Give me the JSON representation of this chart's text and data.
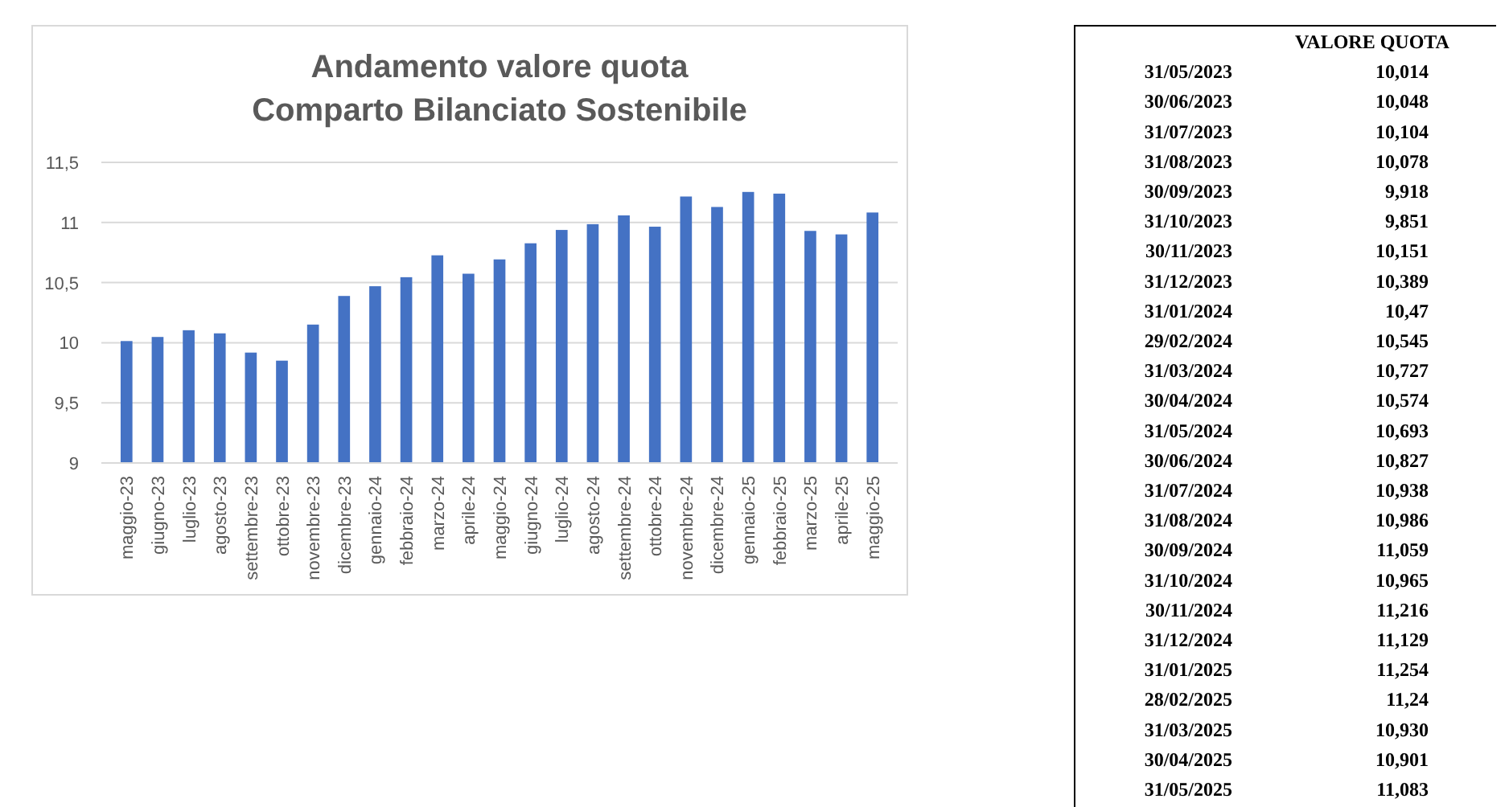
{
  "chart_data": [
    {
      "type": "bar",
      "title": "Andamento valore quota\nComparto Bilanciato Sostenibile",
      "categories": [
        "maggio-23",
        "giugno-23",
        "luglio-23",
        "agosto-23",
        "settembre-23",
        "ottobre-23",
        "novembre-23",
        "dicembre-23",
        "gennaio-24",
        "febbraio-24",
        "marzo-24",
        "aprile-24",
        "maggio-24",
        "giugno-24",
        "luglio-24",
        "agosto-24",
        "settembre-24",
        "ottobre-24",
        "novembre-24",
        "dicembre-24",
        "gennaio-25",
        "febbraio-25",
        "marzo-25",
        "aprile-25",
        "maggio-25"
      ],
      "values": [
        10.014,
        10.048,
        10.104,
        10.078,
        9.918,
        9.851,
        10.151,
        10.389,
        10.47,
        10.545,
        10.727,
        10.574,
        10.693,
        10.827,
        10.938,
        10.986,
        11.059,
        10.965,
        11.216,
        11.129,
        11.254,
        11.24,
        10.93,
        10.901,
        11.083
      ],
      "color": "#4472c4",
      "ylim": [
        9,
        11.5
      ],
      "yticks": [
        9,
        {
          "value": 9.5,
          "label": "9,5"
        },
        10,
        {
          "value": 10.5,
          "label": "10,5"
        },
        11,
        {
          "value": 11.5,
          "label": "11,5"
        }
      ],
      "grid": "y"
    },
    {
      "type": "other",
      "title": "VALORE QUOTA",
      "categories": [
        "31/05/2023",
        "30/06/2023",
        "31/07/2023",
        "31/08/2023",
        "30/09/2023",
        "31/10/2023",
        "30/11/2023",
        "31/12/2023",
        "31/01/2024",
        "29/02/2024",
        "31/03/2024",
        "30/04/2024",
        "31/05/2024",
        "30/06/2024",
        "31/07/2024",
        "31/08/2024",
        "30/09/2024",
        "31/10/2024",
        "30/11/2024",
        "31/12/2024",
        "31/01/2025",
        "28/02/2025",
        "31/03/2025",
        "30/04/2025",
        "31/05/2025"
      ],
      "value_labels": [
        "10,014",
        "10,048",
        "10,104",
        "10,078",
        "9,918",
        "9,851",
        "10,151",
        "10,389",
        "10,47",
        "10,545",
        "10,727",
        "10,574",
        "10,693",
        "10,827",
        "10,938",
        "10,986",
        "11,059",
        "10,965",
        "11,216",
        "11,129",
        "11,254",
        "11,24",
        "10,930",
        "10,901",
        "11,083"
      ]
    }
  ]
}
